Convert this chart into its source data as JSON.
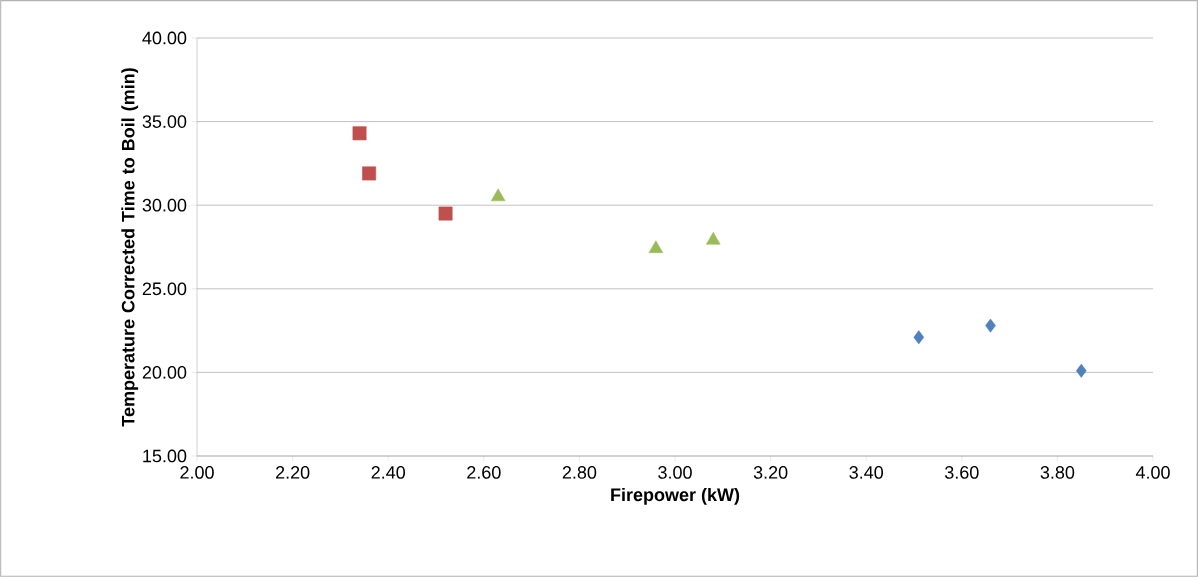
{
  "chart_data": {
    "type": "scatter",
    "xlabel": "Firepower (kW)",
    "ylabel": "Temperature Corrected Time to Boil (min)",
    "xlim": [
      2.0,
      4.0
    ],
    "ylim": [
      15.0,
      40.0
    ],
    "xticks": [
      {
        "value": 2.0,
        "label": "2.00"
      },
      {
        "value": 2.2,
        "label": "2.20"
      },
      {
        "value": 2.4,
        "label": "2.40"
      },
      {
        "value": 2.6,
        "label": "2.60"
      },
      {
        "value": 2.8,
        "label": "2.80"
      },
      {
        "value": 3.0,
        "label": "3.00"
      },
      {
        "value": 3.2,
        "label": "3.20"
      },
      {
        "value": 3.4,
        "label": "3.40"
      },
      {
        "value": 3.6,
        "label": "3.60"
      },
      {
        "value": 3.8,
        "label": "3.80"
      },
      {
        "value": 4.0,
        "label": "4.00"
      }
    ],
    "yticks": [
      {
        "value": 15,
        "label": "15.00"
      },
      {
        "value": 20,
        "label": "20.00"
      },
      {
        "value": 25,
        "label": "25.00"
      },
      {
        "value": 30,
        "label": "30.00"
      },
      {
        "value": 35,
        "label": "35.00"
      },
      {
        "value": 40,
        "label": "40.00"
      }
    ],
    "grid": "y",
    "series": [
      {
        "color": "#4f81bd",
        "marker": "diamond",
        "x": [
          3.51,
          3.66,
          3.85
        ],
        "values": [
          22.1,
          22.8,
          20.1
        ]
      },
      {
        "color": "#c0504d",
        "marker": "square",
        "x": [
          2.34,
          2.36,
          2.52
        ],
        "values": [
          34.3,
          31.9,
          29.5
        ]
      },
      {
        "color": "#9bbb59",
        "marker": "triangle",
        "x": [
          2.63,
          2.96,
          3.08
        ],
        "values": [
          30.5,
          27.4,
          27.9
        ]
      }
    ]
  }
}
